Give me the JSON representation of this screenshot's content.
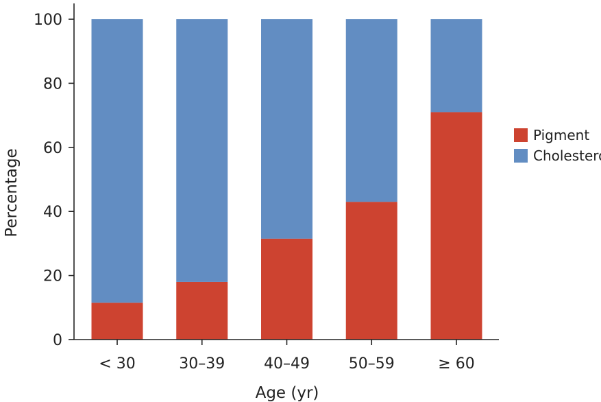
{
  "chart_data": {
    "type": "bar",
    "stacked": true,
    "categories": [
      "< 30",
      "30–39",
      "40–49",
      "50–59",
      "≥ 60"
    ],
    "series": [
      {
        "name": "Pigment",
        "color": "#cd4330",
        "values": [
          11.5,
          18,
          31.5,
          43,
          71
        ]
      },
      {
        "name": "Cholesterol",
        "color": "#628dc2",
        "values": [
          88.5,
          82,
          68.5,
          57,
          29
        ]
      }
    ],
    "xlabel": "Age (yr)",
    "ylabel": "Percentage",
    "ylim": [
      0,
      100
    ],
    "yticks": [
      0,
      20,
      40,
      60,
      80,
      100
    ],
    "grid": false,
    "legend_position": "right"
  }
}
